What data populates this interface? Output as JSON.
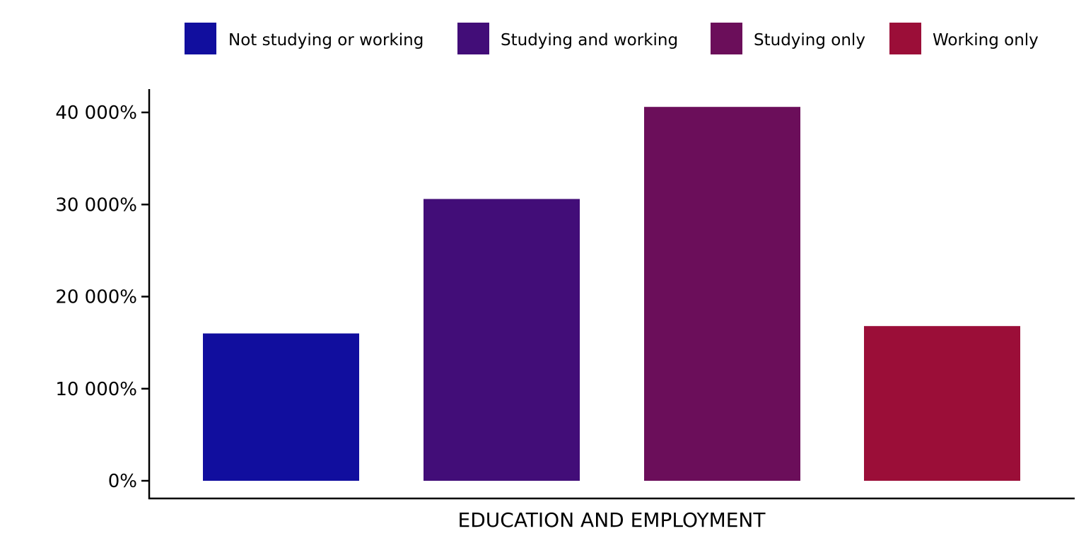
{
  "chart_data": {
    "type": "bar",
    "categories": [
      "Not studying or working",
      "Studying and working",
      "Studying only",
      "Working only"
    ],
    "values": [
      16000,
      30600,
      40600,
      16800
    ],
    "colors": [
      "#110E9E",
      "#420D78",
      "#6B0E5A",
      "#9B0E38"
    ],
    "title": "",
    "xlabel": "EDUCATION AND EMPLOYMENT",
    "ylabel": "",
    "ylim": [
      0,
      40000
    ],
    "y_ticks": [
      0,
      10000,
      20000,
      30000,
      40000
    ],
    "y_tick_labels": [
      "0%",
      "10 000%",
      "20 000%",
      "30 000%",
      "40 000%"
    ],
    "legend": {
      "placement": "top",
      "entries": [
        "Not studying or working",
        "Studying and working",
        "Studying only",
        "Working only"
      ]
    },
    "grid": false,
    "x_tick_labels_visible": false
  }
}
